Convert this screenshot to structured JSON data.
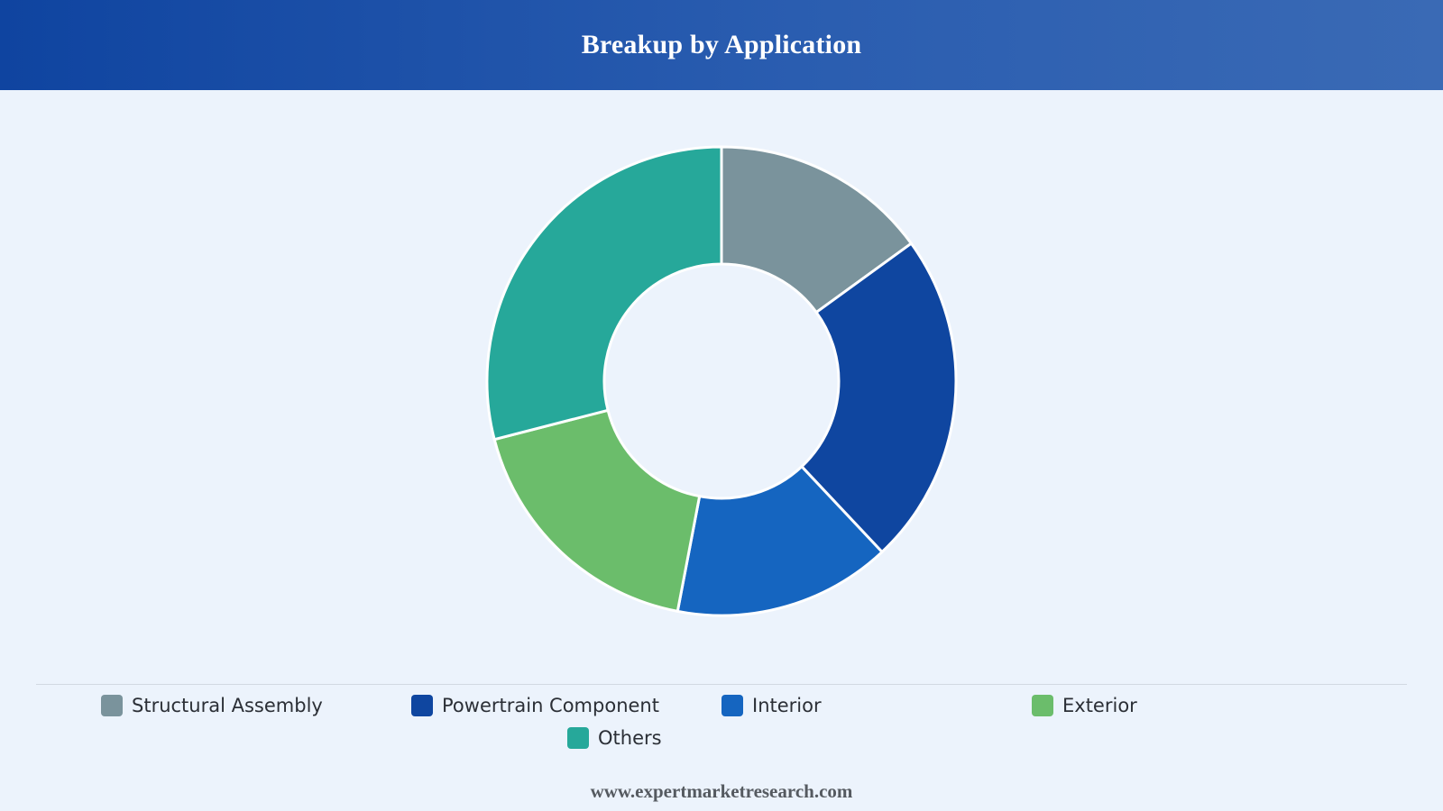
{
  "header": {
    "title": "Breakup by Application"
  },
  "chart_data": {
    "type": "pie",
    "donut": true,
    "categories": [
      "Structural Assembly",
      "Powertrain Component",
      "Interior",
      "Exterior",
      "Others"
    ],
    "values": [
      15,
      23,
      15,
      18,
      29
    ],
    "colors": [
      "#7a939c",
      "#0f46a0",
      "#1565c0",
      "#6bbd6b",
      "#26a89a"
    ],
    "legend": "bottom",
    "title": "Breakup by Application"
  },
  "footer": {
    "website": "www.expertmarketresearch.com"
  }
}
